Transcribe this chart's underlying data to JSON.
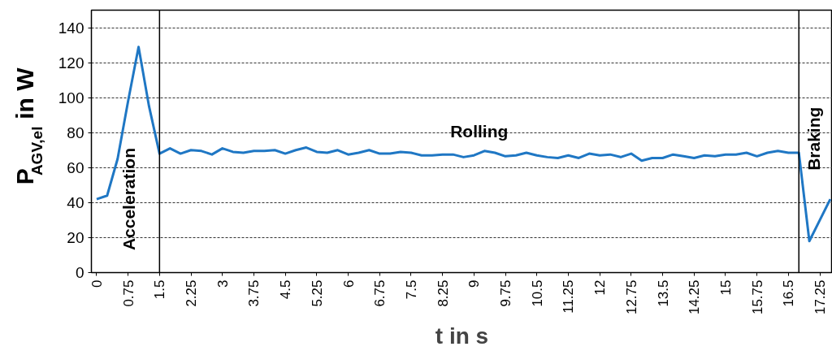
{
  "chart_data": {
    "type": "line",
    "xlabel": "t in s",
    "ylabel": "P$_{AGV,el}$ in W",
    "x": [
      0,
      0.25,
      0.5,
      0.75,
      1,
      1.25,
      1.5,
      1.75,
      2,
      2.25,
      2.5,
      2.75,
      3,
      3.25,
      3.5,
      3.75,
      4,
      4.25,
      4.5,
      4.75,
      5,
      5.25,
      5.5,
      5.75,
      6,
      6.25,
      6.5,
      6.75,
      7,
      7.25,
      7.5,
      7.75,
      8,
      8.25,
      8.5,
      8.75,
      9,
      9.25,
      9.5,
      9.75,
      10,
      10.25,
      10.5,
      10.75,
      11,
      11.25,
      11.5,
      11.75,
      12,
      12.25,
      12.5,
      12.75,
      13,
      13.25,
      13.5,
      13.75,
      14,
      14.25,
      14.5,
      14.75,
      15,
      15.25,
      15.5,
      15.75,
      16,
      16.25,
      16.5,
      16.75,
      17,
      17.25,
      17.5
    ],
    "series": [
      {
        "color": "#1f77c4",
        "values": [
          42,
          44,
          65,
          98,
          129,
          95,
          68,
          71,
          68,
          70,
          69.5,
          67.5,
          71,
          69,
          68.5,
          69.5,
          69.5,
          70,
          68,
          70,
          71.5,
          69,
          68.5,
          70,
          67.5,
          68.5,
          70,
          68,
          68,
          69,
          68.5,
          67,
          67,
          67.5,
          67.5,
          66,
          67,
          69.5,
          68.5,
          66.5,
          67,
          68.5,
          67,
          66,
          65.5,
          67,
          65.5,
          68,
          67,
          67.5,
          66,
          68,
          64,
          65.5,
          65.5,
          67.5,
          66.5,
          65.5,
          67,
          66.5,
          67.5,
          67.5,
          68.5,
          66.5,
          68.5,
          69.5,
          68.5,
          68.5,
          18,
          30,
          42
        ]
      }
    ],
    "xlim": [
      -0.125,
      17.55
    ],
    "ylim": [
      0,
      150
    ],
    "xticks": [
      0,
      0.75,
      1.5,
      2.25,
      3,
      3.75,
      4.5,
      5.25,
      6,
      6.75,
      7.5,
      8.25,
      9,
      9.75,
      10.5,
      11.25,
      12,
      12.75,
      13.5,
      14.25,
      15,
      15.75,
      16.5,
      17.25
    ],
    "yticks": [
      0,
      20,
      40,
      60,
      80,
      100,
      120,
      140
    ],
    "grid": "y",
    "marker": "none",
    "line_style": "solid",
    "ref_lines": [
      {
        "axis": "x",
        "value": 1.5,
        "color": "#000000"
      },
      {
        "axis": "x",
        "value": 16.75,
        "color": "#000000"
      }
    ],
    "annotations": [
      "Acceleration",
      "Rolling",
      "Braking"
    ]
  }
}
